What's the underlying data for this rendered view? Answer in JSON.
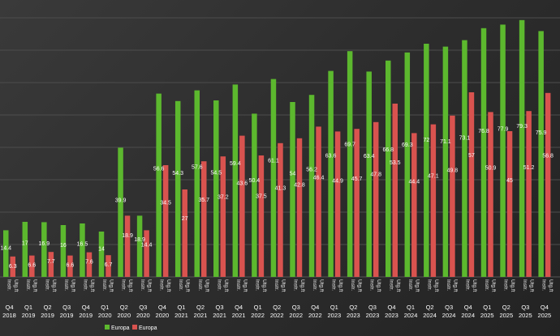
{
  "chart_data": {
    "type": "bar",
    "ylim": [
      0,
      85
    ],
    "grid": true,
    "legend_placement": "bottom-left",
    "quarters": [
      [
        "Q4",
        "2018"
      ],
      [
        "Q1",
        "2019"
      ],
      [
        "Q2",
        "2019"
      ],
      [
        "Q3",
        "2019"
      ],
      [
        "Q4",
        "2019"
      ],
      [
        "Q1",
        "2020"
      ],
      [
        "Q2",
        "2020"
      ],
      [
        "Q3",
        "2020"
      ],
      [
        "Q4",
        "2020"
      ],
      [
        "Q1",
        "2021"
      ],
      [
        "Q2",
        "2021"
      ],
      [
        "Q3",
        "2021"
      ],
      [
        "Q4",
        "2021"
      ],
      [
        "Q1",
        "2022"
      ],
      [
        "Q2",
        "2022"
      ],
      [
        "Q3",
        "2022"
      ],
      [
        "Q4",
        "2022"
      ],
      [
        "Q1",
        "2023"
      ],
      [
        "Q2",
        "2023"
      ],
      [
        "Q3",
        "2023"
      ],
      [
        "Q4",
        "2023"
      ],
      [
        "Q1",
        "2024"
      ],
      [
        "Q2",
        "2024"
      ],
      [
        "Q3",
        "2024"
      ],
      [
        "Q4",
        "2024"
      ],
      [
        "Q1",
        "2025"
      ],
      [
        "Q2",
        "2025"
      ],
      [
        "Q3",
        "2025"
      ],
      [
        "Q4",
        "2025"
      ]
    ],
    "bar_labels": [
      "Instr.",
      "Utg.ft"
    ],
    "series": [
      {
        "name": "Europa",
        "color": "#5cb82e",
        "values": [
          14.4,
          17,
          16.9,
          16,
          16.5,
          14,
          39.9,
          18.9,
          56.6,
          54.3,
          57.6,
          54.5,
          59.4,
          50.4,
          61.1,
          54,
          56.2,
          63.6,
          69.7,
          63.4,
          66.8,
          69.3,
          72,
          71.1,
          73.1,
          76.8,
          77.9,
          79.3,
          75.9
        ]
      },
      {
        "name": "Europa",
        "color": "#d9534f",
        "values": [
          6.3,
          6.6,
          7.7,
          6.6,
          7.6,
          6.7,
          18.9,
          14.4,
          34.5,
          27,
          35.7,
          37.2,
          43.6,
          37.5,
          41.3,
          42.8,
          46.4,
          44.9,
          45.7,
          47.8,
          53.5,
          44.4,
          47.1,
          49.8,
          57,
          50.9,
          45,
          51.2,
          56.8
        ]
      }
    ]
  }
}
